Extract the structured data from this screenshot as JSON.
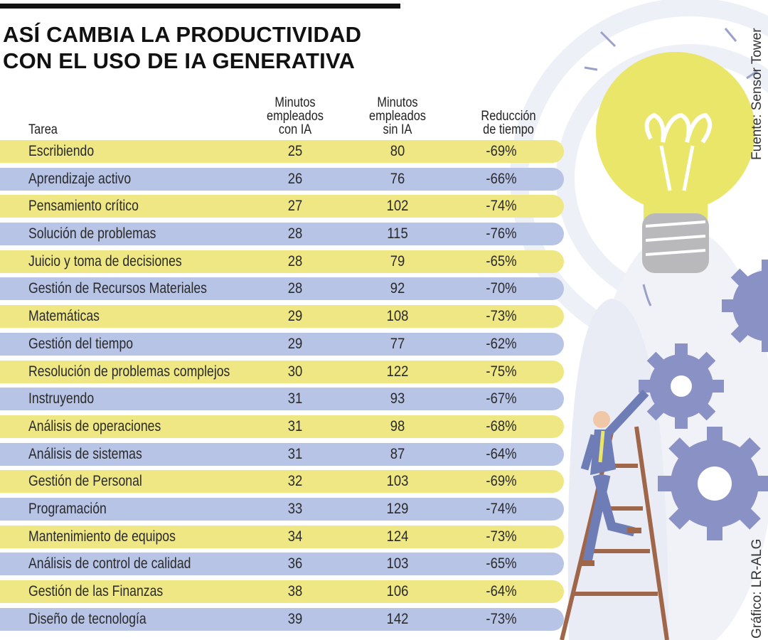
{
  "title_line1": "ASÍ CAMBIA LA PRODUCTIVIDAD",
  "title_line2": "CON EL USO DE IA GENERATIVA",
  "source": "Fuente: Sensor Tower",
  "credit": "Gráfico: LR-ALG",
  "colors": {
    "row_yellow": "#eee784",
    "row_blue": "#b8c4e6",
    "bulb": "#e9e66a",
    "gear": "#8a91c4"
  },
  "chart_data": {
    "type": "table",
    "columns": [
      "Tarea",
      "Minutos empleados con IA",
      "Minutos empleados sin IA",
      "Reducción de tiempo"
    ],
    "header_lines": {
      "task": [
        "Tarea"
      ],
      "con_ia": [
        "Minutos",
        "empleados",
        "con IA"
      ],
      "sin_ia": [
        "Minutos",
        "empleados",
        "sin IA"
      ],
      "reduccion": [
        "Reducción",
        "de tiempo"
      ]
    },
    "rows": [
      [
        "Escribiendo",
        "25",
        "80",
        "-69%"
      ],
      [
        "Aprendizaje activo",
        "26",
        "76",
        "-66%"
      ],
      [
        "Pensamiento crítico",
        "27",
        "102",
        "-74%"
      ],
      [
        "Solución de problemas",
        "28",
        "115",
        "-76%"
      ],
      [
        "Juicio y toma de decisiones",
        "28",
        "79",
        "-65%"
      ],
      [
        "Gestión de Recursos Materiales",
        "28",
        "92",
        "-70%"
      ],
      [
        "Matemáticas",
        "29",
        "108",
        "-73%"
      ],
      [
        "Gestión del tiempo",
        "29",
        "77",
        "-62%"
      ],
      [
        "Resolución de problemas complejos",
        "30",
        "122",
        "-75%"
      ],
      [
        "Instruyendo",
        "31",
        "93",
        "-67%"
      ],
      [
        "Análisis de operaciones",
        "31",
        "98",
        "-68%"
      ],
      [
        "Análisis de sistemas",
        "31",
        "87",
        "-64%"
      ],
      [
        "Gestión de Personal",
        "32",
        "103",
        "-69%"
      ],
      [
        "Programación",
        "33",
        "129",
        "-74%"
      ],
      [
        "Mantenimiento de equipos",
        "34",
        "124",
        "-73%"
      ],
      [
        "Análisis de control de calidad",
        "36",
        "103",
        "-65%"
      ],
      [
        "Gestión de las Finanzas",
        "38",
        "106",
        "-64%"
      ],
      [
        "Diseño de tecnología",
        "39",
        "142",
        "-73%"
      ]
    ]
  }
}
